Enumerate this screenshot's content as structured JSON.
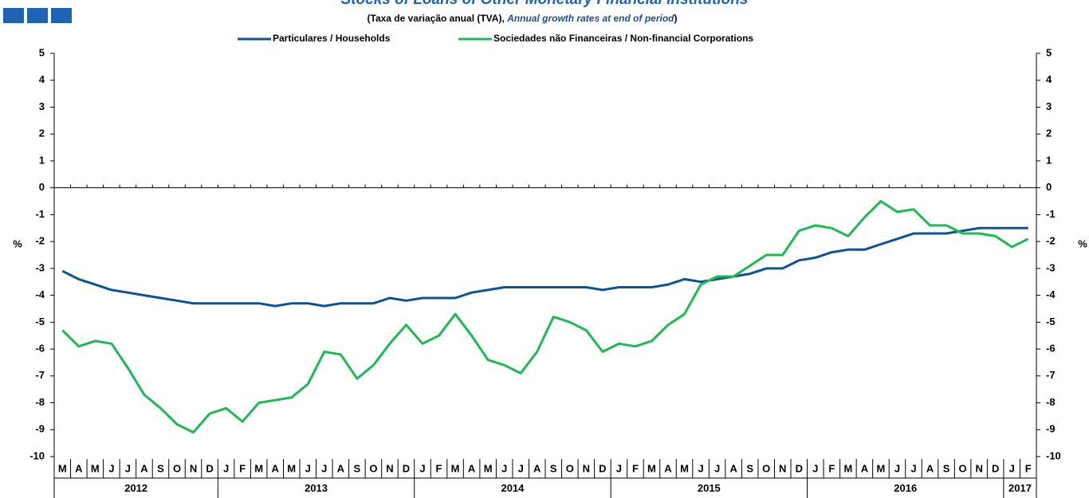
{
  "chart_data": {
    "type": "line",
    "title": "Stocks of Loans of Other Monetary Financial Institutions",
    "subtitle": [
      "(Taxa de variação anual (TVA),",
      "Annual growth rates at end of period",
      ")"
    ],
    "y_label": "%",
    "categories": [
      "M",
      "A",
      "M",
      "J",
      "J",
      "A",
      "S",
      "O",
      "N",
      "D",
      "J",
      "F",
      "M",
      "A",
      "M",
      "J",
      "J",
      "A",
      "S",
      "O",
      "N",
      "D",
      "J",
      "F",
      "M",
      "A",
      "M",
      "J",
      "J",
      "A",
      "S",
      "O",
      "N",
      "D",
      "J",
      "F",
      "M",
      "A",
      "M",
      "J",
      "J",
      "A",
      "S",
      "O",
      "N",
      "D",
      "J",
      "F",
      "M",
      "A",
      "M",
      "J",
      "J",
      "A",
      "S",
      "O",
      "N",
      "D",
      "J",
      "F"
    ],
    "years": [
      "2012",
      "2013",
      "2014",
      "2015",
      "2016",
      "2017"
    ],
    "series": [
      {
        "name": "Particulares / Households",
        "color": "#0b5394",
        "values": [
          -3.1,
          -3.4,
          -3.6,
          -3.8,
          -3.9,
          -4.0,
          -4.1,
          -4.2,
          -4.3,
          -4.3,
          -4.3,
          -4.3,
          -4.3,
          -4.4,
          -4.3,
          -4.3,
          -4.4,
          -4.3,
          -4.3,
          -4.3,
          -4.1,
          -4.2,
          -4.1,
          -4.1,
          -4.1,
          -3.9,
          -3.8,
          -3.7,
          -3.7,
          -3.7,
          -3.7,
          -3.7,
          -3.7,
          -3.8,
          -3.7,
          -3.7,
          -3.7,
          -3.6,
          -3.4,
          -3.5,
          -3.4,
          -3.3,
          -3.2,
          -3.0,
          -3.0,
          -2.7,
          -2.6,
          -2.4,
          -2.3,
          -2.3,
          -2.1,
          -1.9,
          -1.7,
          -1.7,
          -1.7,
          -1.6,
          -1.5,
          -1.5,
          -1.5,
          -1.5
        ]
      },
      {
        "name": "Sociedades não Financeiras / Non-financial Corporations",
        "color": "#1db954",
        "values": [
          -5.3,
          -5.9,
          -5.7,
          -5.8,
          -6.7,
          -7.7,
          -8.2,
          -8.8,
          -9.1,
          -8.4,
          -8.2,
          -8.7,
          -8.0,
          -7.9,
          -7.8,
          -7.3,
          -6.1,
          -6.2,
          -7.1,
          -6.6,
          -5.8,
          -5.1,
          -5.8,
          -5.5,
          -4.7,
          -5.5,
          -6.4,
          -6.6,
          -6.9,
          -6.1,
          -4.8,
          -5.0,
          -5.3,
          -6.1,
          -5.8,
          -5.9,
          -5.7,
          -5.1,
          -4.7,
          -3.6,
          -3.3,
          -3.3,
          -2.9,
          -2.5,
          -2.5,
          -1.6,
          -1.4,
          -1.5,
          -1.8,
          -1.1,
          -0.5,
          -0.9,
          -0.8,
          -1.4,
          -1.4,
          -1.7,
          -1.7,
          -1.8,
          -2.2,
          -1.9
        ]
      }
    ],
    "ylim": [
      -10,
      5
    ],
    "yticks": [
      5,
      4,
      3,
      2,
      1,
      0,
      -1,
      -2,
      -3,
      -4,
      -5,
      -6,
      -7,
      -8,
      -9,
      -10
    ]
  }
}
